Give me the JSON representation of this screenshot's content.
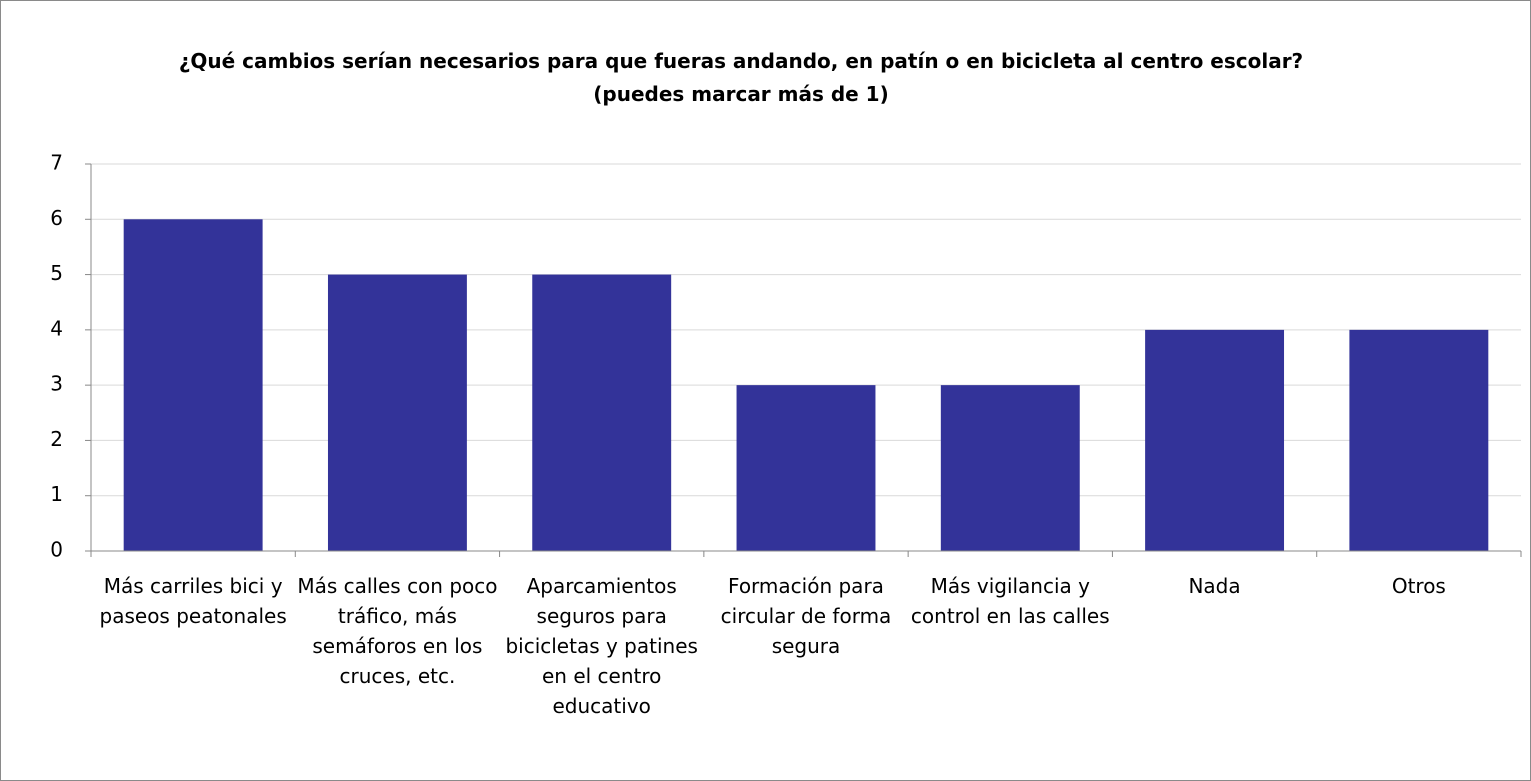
{
  "chart_data": {
    "type": "bar",
    "title": "¿Qué cambios serían necesarios para que fueras andando, en patín o en bicicleta al centro escolar? (puedes marcar más de 1)",
    "categories": [
      "Más carriles bici y paseos peatonales",
      "Más calles con poco tráfico, más semáforos en los cruces, etc.",
      "Aparcamientos seguros para bicicletas y patines en el centro educativo",
      "Formación para circular de forma segura",
      "Más vigilancia y control en las calles",
      "Nada",
      "Otros"
    ],
    "values": [
      6,
      5,
      5,
      3,
      3,
      4,
      4
    ],
    "color": "#333399",
    "ylim": [
      0,
      7
    ],
    "yticks": [
      0,
      1,
      2,
      3,
      4,
      5,
      6,
      7
    ],
    "grid": true
  }
}
